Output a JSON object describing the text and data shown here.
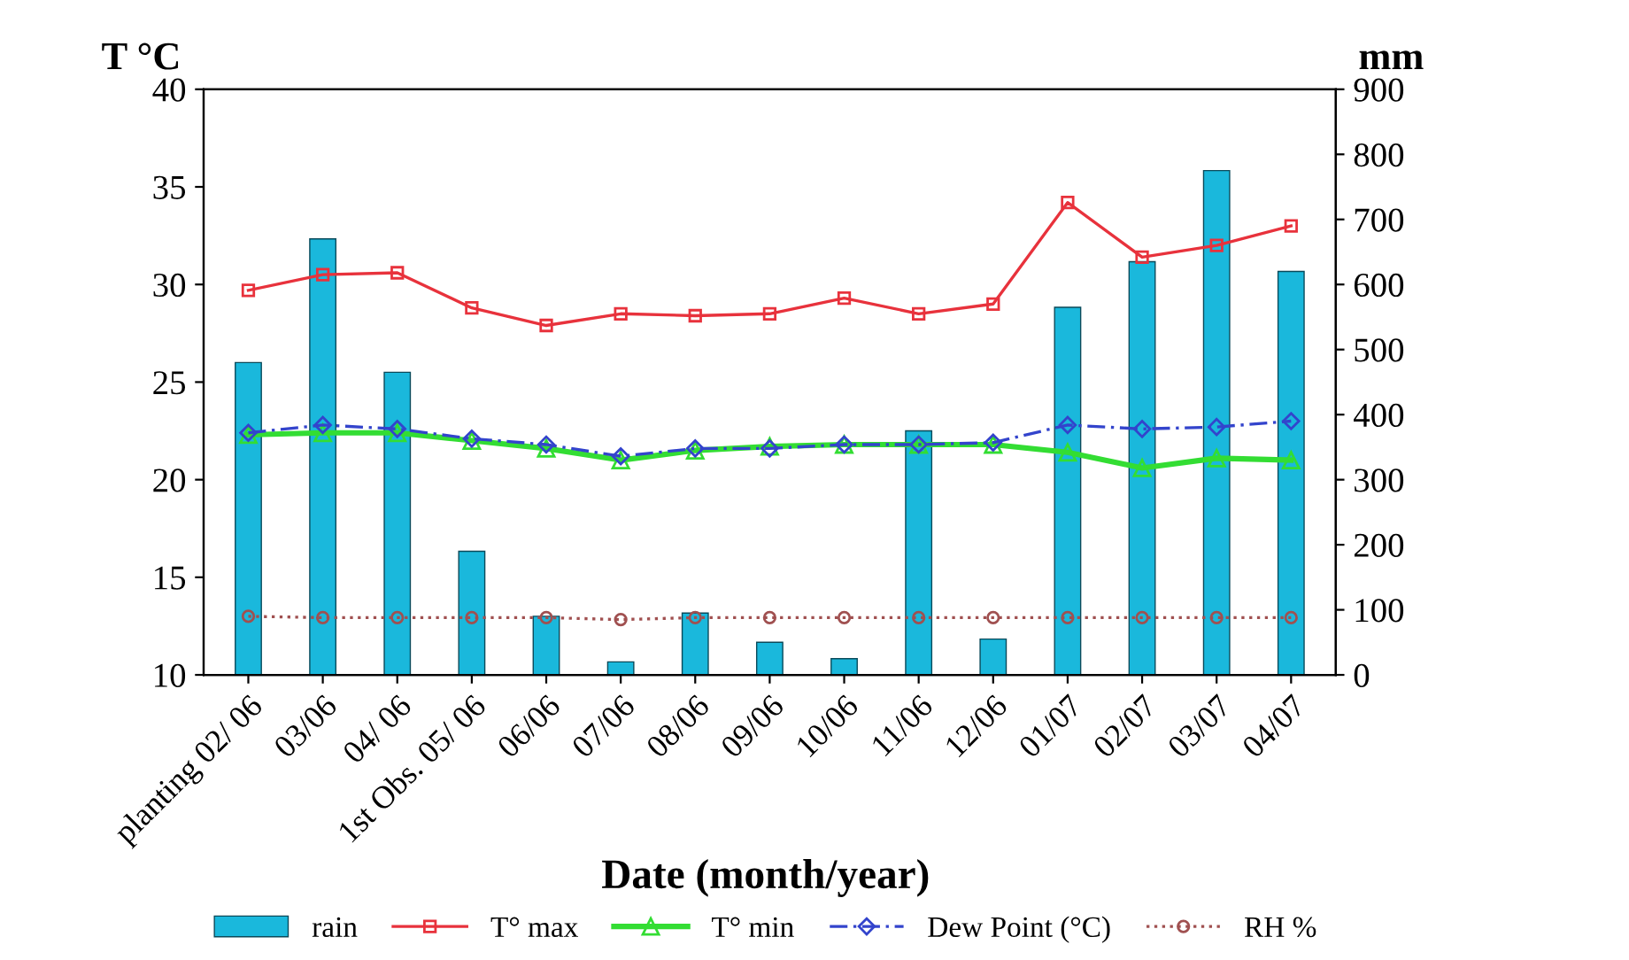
{
  "chart_data": {
    "type": "bar",
    "xlabel": "Date (month/year)",
    "ylabel": "T °C",
    "y2label": "mm",
    "categories": [
      "planting 02/ 06",
      "03/06",
      "04/ 06",
      "1st Obs. 05/ 06",
      "06/06",
      "07/06",
      "08/06",
      "09/06",
      "10/06",
      "11/06",
      "12/06",
      "01/07",
      "02/07",
      "03/07",
      "04/07"
    ],
    "series": [
      {
        "name": "rain",
        "axis": "y2",
        "color": "#1ab8dc",
        "values": [
          480,
          670,
          465,
          190,
          90,
          20,
          95,
          50,
          25,
          375,
          55,
          565,
          635,
          775,
          620
        ]
      },
      {
        "name": "T° max",
        "type": "line",
        "color": "#e8323c",
        "marker": "square",
        "line_style": "solid",
        "values": [
          29.7,
          30.5,
          30.6,
          28.8,
          27.9,
          28.5,
          28.4,
          28.5,
          29.3,
          28.5,
          29.0,
          34.2,
          31.4,
          32.0,
          33.0
        ]
      },
      {
        "name": "T° min",
        "type": "line",
        "color": "#33dd33",
        "marker": "triangle",
        "line_style": "solid",
        "values": [
          22.3,
          22.4,
          22.4,
          22.0,
          21.6,
          21.0,
          21.5,
          21.7,
          21.8,
          21.8,
          21.8,
          21.4,
          20.6,
          21.1,
          21.0
        ]
      },
      {
        "name": "Dew Point (°C)",
        "type": "line",
        "color": "#3344cc",
        "marker": "diamond",
        "line_style": "dashed",
        "values": [
          22.4,
          22.8,
          22.6,
          22.1,
          21.8,
          21.2,
          21.6,
          21.6,
          21.8,
          21.8,
          21.9,
          22.8,
          22.6,
          22.7,
          23.0
        ]
      },
      {
        "name": "RH %",
        "type": "line",
        "axis": "y2",
        "color": "#a05050",
        "marker": "circle",
        "line_style": "dotted",
        "values": [
          90,
          88,
          88,
          88,
          88,
          85,
          88,
          88,
          88,
          88,
          88,
          88,
          88,
          88,
          88
        ]
      }
    ],
    "ylim": [
      10,
      40
    ],
    "yticks": [
      10,
      15,
      20,
      25,
      30,
      35,
      40
    ],
    "y2lim": [
      0,
      900
    ],
    "y2ticks": [
      0,
      100,
      200,
      300,
      400,
      500,
      600,
      700,
      800,
      900
    ],
    "grid": false,
    "legend": "bottom"
  }
}
